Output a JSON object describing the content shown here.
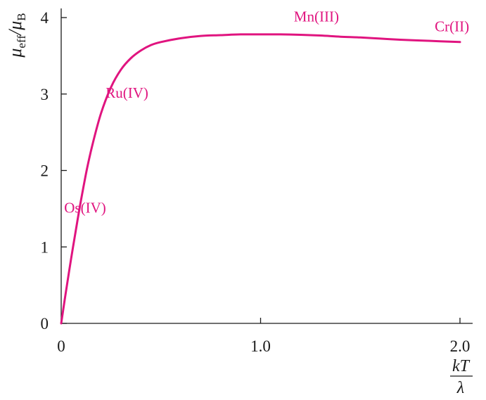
{
  "chart_data": {
    "type": "line",
    "title": "",
    "xlabel": {
      "numerator": "kT",
      "denominator": "λ"
    },
    "ylabel": {
      "main": "μ",
      "sub1": "eff",
      "sep": "/μ",
      "sub2": "B"
    },
    "xlim": [
      0,
      2.05
    ],
    "ylim": [
      0,
      4.15
    ],
    "x_ticks": [
      {
        "value": 0,
        "label": "0"
      },
      {
        "value": 1.0,
        "label": "1.0"
      },
      {
        "value": 2.0,
        "label": "2.0"
      }
    ],
    "y_ticks": [
      {
        "value": 0,
        "label": "0"
      },
      {
        "value": 1,
        "label": "1"
      },
      {
        "value": 2,
        "label": "2"
      },
      {
        "value": 3,
        "label": "3"
      },
      {
        "value": 4,
        "label": "4"
      }
    ],
    "grid": false,
    "legend": "none",
    "line_color": "#e0147f",
    "annotation_color": "#e0147f",
    "series": [
      {
        "x": [
          0,
          0.02,
          0.05,
          0.08,
          0.1,
          0.13,
          0.16,
          0.2,
          0.25,
          0.3,
          0.35,
          0.4,
          0.45,
          0.5,
          0.6,
          0.7,
          0.8,
          0.9,
          1.0,
          1.1,
          1.2,
          1.3,
          1.4,
          1.5,
          1.6,
          1.7,
          1.8,
          1.9,
          2.0
        ],
        "values": [
          0,
          0.35,
          0.85,
          1.32,
          1.62,
          2.03,
          2.37,
          2.75,
          3.09,
          3.32,
          3.47,
          3.57,
          3.64,
          3.68,
          3.73,
          3.76,
          3.77,
          3.78,
          3.78,
          3.78,
          3.775,
          3.765,
          3.75,
          3.74,
          3.725,
          3.71,
          3.7,
          3.69,
          3.68
        ]
      }
    ],
    "annotations": [
      {
        "text": "Os(IV)",
        "x": 0.12,
        "y": 1.45
      },
      {
        "text": "Ru(IV)",
        "x": 0.33,
        "y": 2.95
      },
      {
        "text": "Mn(III)",
        "x": 1.28,
        "y": 3.95
      },
      {
        "text": "Cr(II)",
        "x": 1.96,
        "y": 3.82
      }
    ]
  }
}
